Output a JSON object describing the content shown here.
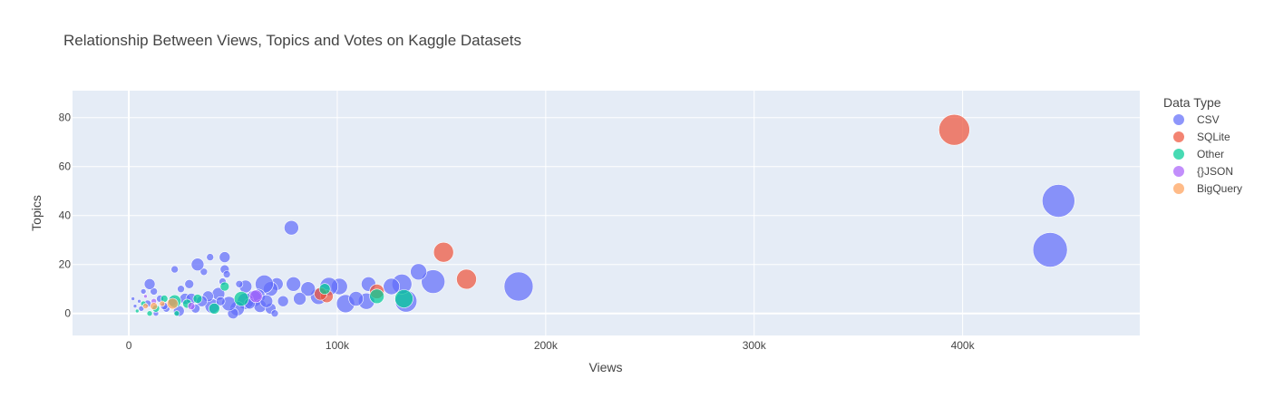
{
  "chart_data": {
    "type": "scatter",
    "title": "Relationship Between Views, Topics and Votes on Kaggle Datasets",
    "xlabel": "Views",
    "ylabel": "Topics",
    "xlim": [
      -27000,
      485000
    ],
    "ylim": [
      -9,
      91
    ],
    "x_ticks": [
      0,
      100000,
      200000,
      300000,
      400000
    ],
    "x_tick_labels": [
      "0",
      "100k",
      "200k",
      "300k",
      "400k"
    ],
    "y_ticks": [
      0,
      20,
      40,
      60,
      80
    ],
    "y_tick_labels": [
      "0",
      "20",
      "40",
      "60",
      "80"
    ],
    "grid": true,
    "legend": {
      "title": "Data Type",
      "position": "right"
    },
    "size_encodes": "Votes",
    "series": [
      {
        "name": "CSV",
        "color": "#636efa",
        "points": [
          {
            "x": 442000,
            "y": 26,
            "s": 19
          },
          {
            "x": 446000,
            "y": 46,
            "s": 18
          },
          {
            "x": 187000,
            "y": 11,
            "s": 16
          },
          {
            "x": 146000,
            "y": 13,
            "s": 13
          },
          {
            "x": 133000,
            "y": 5,
            "s": 12
          },
          {
            "x": 131000,
            "y": 12,
            "s": 11
          },
          {
            "x": 139000,
            "y": 17,
            "s": 9
          },
          {
            "x": 126000,
            "y": 11,
            "s": 9
          },
          {
            "x": 114000,
            "y": 5,
            "s": 9
          },
          {
            "x": 115000,
            "y": 12,
            "s": 8
          },
          {
            "x": 104000,
            "y": 4,
            "s": 10
          },
          {
            "x": 109000,
            "y": 6,
            "s": 8
          },
          {
            "x": 101000,
            "y": 11,
            "s": 9
          },
          {
            "x": 96000,
            "y": 11,
            "s": 10
          },
          {
            "x": 91000,
            "y": 7,
            "s": 9
          },
          {
            "x": 86000,
            "y": 10,
            "s": 8
          },
          {
            "x": 82000,
            "y": 6,
            "s": 7
          },
          {
            "x": 79000,
            "y": 12,
            "s": 8
          },
          {
            "x": 78000,
            "y": 35,
            "s": 8
          },
          {
            "x": 74000,
            "y": 5,
            "s": 6
          },
          {
            "x": 71000,
            "y": 12,
            "s": 7
          },
          {
            "x": 68000,
            "y": 10,
            "s": 8
          },
          {
            "x": 65000,
            "y": 12,
            "s": 10
          },
          {
            "x": 62000,
            "y": 7,
            "s": 8
          },
          {
            "x": 60000,
            "y": 6,
            "s": 9
          },
          {
            "x": 63000,
            "y": 3,
            "s": 7
          },
          {
            "x": 68000,
            "y": 2,
            "s": 6
          },
          {
            "x": 70000,
            "y": 0,
            "s": 4
          },
          {
            "x": 56000,
            "y": 11,
            "s": 7
          },
          {
            "x": 56000,
            "y": 5,
            "s": 9
          },
          {
            "x": 52000,
            "y": 2,
            "s": 8
          },
          {
            "x": 50000,
            "y": 0,
            "s": 6
          },
          {
            "x": 48000,
            "y": 4,
            "s": 8
          },
          {
            "x": 46000,
            "y": 23,
            "s": 6
          },
          {
            "x": 46000,
            "y": 18,
            "s": 5
          },
          {
            "x": 47000,
            "y": 16,
            "s": 4
          },
          {
            "x": 45000,
            "y": 13,
            "s": 4
          },
          {
            "x": 43000,
            "y": 8,
            "s": 7
          },
          {
            "x": 40000,
            "y": 3,
            "s": 8
          },
          {
            "x": 39000,
            "y": 23,
            "s": 4
          },
          {
            "x": 38000,
            "y": 7,
            "s": 6
          },
          {
            "x": 36000,
            "y": 17,
            "s": 4
          },
          {
            "x": 33000,
            "y": 20,
            "s": 7
          },
          {
            "x": 35000,
            "y": 5,
            "s": 6
          },
          {
            "x": 32000,
            "y": 2,
            "s": 5
          },
          {
            "x": 29000,
            "y": 12,
            "s": 5
          },
          {
            "x": 27000,
            "y": 6,
            "s": 6
          },
          {
            "x": 25000,
            "y": 10,
            "s": 4
          },
          {
            "x": 24000,
            "y": 1,
            "s": 6
          },
          {
            "x": 22000,
            "y": 18,
            "s": 4
          },
          {
            "x": 21000,
            "y": 5,
            "s": 5
          },
          {
            "x": 18000,
            "y": 2,
            "s": 4
          },
          {
            "x": 15000,
            "y": 6,
            "s": 4
          },
          {
            "x": 12000,
            "y": 9,
            "s": 4
          },
          {
            "x": 10000,
            "y": 12,
            "s": 6
          },
          {
            "x": 9000,
            "y": 4,
            "s": 4
          },
          {
            "x": 7000,
            "y": 9,
            "s": 3
          },
          {
            "x": 6000,
            "y": 2,
            "s": 3
          },
          {
            "x": 5000,
            "y": 5,
            "s": 2
          },
          {
            "x": 3000,
            "y": 3,
            "s": 2
          },
          {
            "x": 2000,
            "y": 6,
            "s": 2
          },
          {
            "x": 13000,
            "y": 0,
            "s": 3
          },
          {
            "x": 17000,
            "y": 3,
            "s": 4
          },
          {
            "x": 30000,
            "y": 6,
            "s": 6
          },
          {
            "x": 44000,
            "y": 5,
            "s": 5
          },
          {
            "x": 53000,
            "y": 12,
            "s": 4
          },
          {
            "x": 58000,
            "y": 4,
            "s": 6
          },
          {
            "x": 66000,
            "y": 5,
            "s": 7
          }
        ]
      },
      {
        "name": "SQLite",
        "color": "#ef553b",
        "points": [
          {
            "x": 396000,
            "y": 75,
            "s": 17
          },
          {
            "x": 151000,
            "y": 25,
            "s": 11
          },
          {
            "x": 162000,
            "y": 14,
            "s": 11
          },
          {
            "x": 119000,
            "y": 9,
            "s": 8
          },
          {
            "x": 95000,
            "y": 7,
            "s": 7
          },
          {
            "x": 92000,
            "y": 8,
            "s": 7
          }
        ]
      },
      {
        "name": "Other",
        "color": "#00cc96",
        "points": [
          {
            "x": 132000,
            "y": 6,
            "s": 10
          },
          {
            "x": 119000,
            "y": 7,
            "s": 8
          },
          {
            "x": 94000,
            "y": 10,
            "s": 6
          },
          {
            "x": 54000,
            "y": 6,
            "s": 8
          },
          {
            "x": 46000,
            "y": 11,
            "s": 5
          },
          {
            "x": 41000,
            "y": 2,
            "s": 6
          },
          {
            "x": 33000,
            "y": 6,
            "s": 5
          },
          {
            "x": 28000,
            "y": 4,
            "s": 5
          },
          {
            "x": 22000,
            "y": 5,
            "s": 7
          },
          {
            "x": 17000,
            "y": 6,
            "s": 4
          },
          {
            "x": 13000,
            "y": 2,
            "s": 4
          },
          {
            "x": 10000,
            "y": 0,
            "s": 3
          },
          {
            "x": 7000,
            "y": 4,
            "s": 3
          },
          {
            "x": 4000,
            "y": 1,
            "s": 2
          },
          {
            "x": 23000,
            "y": 0,
            "s": 3
          }
        ]
      },
      {
        "name": "{}JSON",
        "color": "#ab63fa",
        "points": [
          {
            "x": 61000,
            "y": 7,
            "s": 7
          },
          {
            "x": 12000,
            "y": 5,
            "s": 3
          },
          {
            "x": 30000,
            "y": 3,
            "s": 4
          },
          {
            "x": 8000,
            "y": 7,
            "s": 2
          }
        ]
      },
      {
        "name": "BigQuery",
        "color": "#ffa15a",
        "points": [
          {
            "x": 21000,
            "y": 4,
            "s": 6
          },
          {
            "x": 12000,
            "y": 3,
            "s": 4
          },
          {
            "x": 8000,
            "y": 3,
            "s": 3
          },
          {
            "x": 16000,
            "y": 4,
            "s": 3
          }
        ]
      }
    ]
  }
}
